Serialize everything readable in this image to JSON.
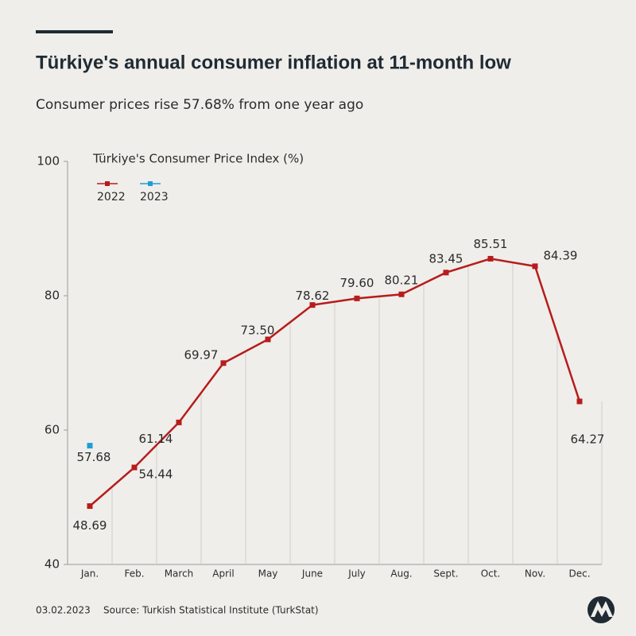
{
  "chart_data": {
    "type": "line",
    "title": "Türkiye's annual consumer inflation at 11-month low",
    "subtitle": "Consumer prices rise 57.68% from one year ago",
    "y_label": "Türkiye's Consumer Price Index (%)",
    "categories": [
      "Jan.",
      "Feb.",
      "March",
      "April",
      "May",
      "June",
      "July",
      "Aug.",
      "Sept.",
      "Oct.",
      "Nov.",
      "Dec."
    ],
    "series": [
      {
        "name": "2022",
        "color": "#b71c1c",
        "values": [
          48.69,
          54.44,
          61.14,
          69.97,
          73.5,
          78.62,
          79.6,
          80.21,
          83.45,
          85.51,
          84.39,
          64.27
        ],
        "value_labels": [
          "48.69",
          "54.44",
          "61.14",
          "69.97",
          "73.50",
          "78.62",
          "79.60",
          "80.21",
          "83.45",
          "85.51",
          "84.39",
          "64.27"
        ]
      },
      {
        "name": "2023",
        "color": "#1e9fd4",
        "values": [
          57.68,
          null,
          null,
          null,
          null,
          null,
          null,
          null,
          null,
          null,
          null,
          null
        ],
        "value_labels": [
          "57.68",
          null,
          null,
          null,
          null,
          null,
          null,
          null,
          null,
          null,
          null,
          null
        ]
      }
    ],
    "ylim": [
      40,
      100
    ],
    "yticks": [
      40,
      60,
      80,
      100
    ],
    "legend": "top-left",
    "date": "03.02.2023",
    "source": "Source: Turkish Statistical Institute (TurkStat)"
  }
}
